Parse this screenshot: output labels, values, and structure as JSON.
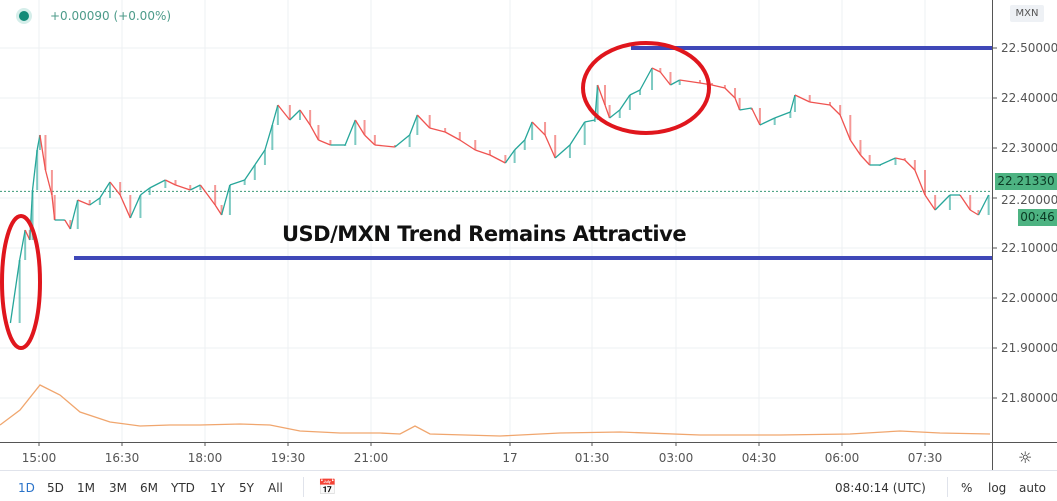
{
  "header": {
    "status_dot_color": "#138a78",
    "change_text": "+0.00090 (+0.00%)"
  },
  "price_axis": {
    "currency_label": "MXN",
    "ticks": [
      "22.50000",
      "22.40000",
      "22.30000",
      "22.20000",
      "22.10000",
      "22.00000",
      "21.90000",
      "21.80000"
    ],
    "current_price_label": "22.21330",
    "countdown_label": "00:46"
  },
  "time_axis": {
    "ticks": [
      "15:00",
      "16:30",
      "18:00",
      "19:30",
      "21:00",
      "17",
      "01:30",
      "03:00",
      "04:30",
      "06:00",
      "07:30"
    ],
    "settings_icon": "gear-icon"
  },
  "annotation": {
    "title": "USD/MXN Trend Remains Attractive",
    "resistance_level": 22.5,
    "support_level": 22.08,
    "line_color": "#3f48b8",
    "circle_color": "#e0161d"
  },
  "chart_data": {
    "type": "line",
    "title": "USD/MXN Trend Remains Attractive",
    "ylim": [
      21.72,
      22.59
    ],
    "grid": true,
    "current_price": 22.2133,
    "up_color": "#26a69a",
    "down_color": "#ef5350",
    "series": [
      {
        "points": [
          [
            "14:29",
            21.95
          ],
          [
            "14:39",
            22.076
          ],
          [
            "14:45",
            22.136
          ],
          [
            "14:50",
            22.116
          ],
          [
            "14:53",
            22.216
          ],
          [
            "14:58",
            22.296
          ],
          [
            "15:01",
            22.326
          ],
          [
            "15:07",
            22.256
          ],
          [
            "15:14",
            22.206
          ],
          [
            "15:17",
            22.156
          ],
          [
            "15:28",
            22.156
          ],
          [
            "15:34",
            22.138
          ],
          [
            "15:42",
            22.196
          ],
          [
            "15:55",
            22.186
          ],
          [
            "16:06",
            22.2
          ],
          [
            "16:17",
            22.232
          ],
          [
            "16:28",
            22.206
          ],
          [
            "16:39",
            22.16
          ],
          [
            "16:50",
            22.206
          ],
          [
            "17:00",
            22.22
          ],
          [
            "17:17",
            22.236
          ],
          [
            "17:28",
            22.226
          ],
          [
            "17:44",
            22.216
          ],
          [
            "17:55",
            22.226
          ],
          [
            "18:11",
            22.186
          ],
          [
            "18:18",
            22.166
          ],
          [
            "18:27",
            22.226
          ],
          [
            "18:43",
            22.236
          ],
          [
            "18:54",
            22.266
          ],
          [
            "19:05",
            22.296
          ],
          [
            "19:13",
            22.346
          ],
          [
            "19:19",
            22.386
          ],
          [
            "19:32",
            22.356
          ],
          [
            "19:43",
            22.376
          ],
          [
            "19:54",
            22.346
          ],
          [
            "20:03",
            22.316
          ],
          [
            "20:16",
            22.306
          ],
          [
            "20:32",
            22.306
          ],
          [
            "20:43",
            22.356
          ],
          [
            "20:53",
            22.326
          ],
          [
            "21:05",
            22.306
          ],
          [
            "21:31",
            22.302
          ],
          [
            "21:50",
            22.326
          ],
          [
            "22:00",
            22.366
          ],
          [
            "22:16",
            22.34
          ],
          [
            "22:36",
            22.332
          ],
          [
            "22:55",
            22.316
          ],
          [
            "23:15",
            22.296
          ],
          [
            "23:34",
            22.286
          ],
          [
            "23:54",
            22.27
          ],
          [
            "00:05",
            22.296
          ],
          [
            "00:16",
            22.316
          ],
          [
            "00:24",
            22.352
          ],
          [
            "00:38",
            22.326
          ],
          [
            "00:49",
            22.28
          ],
          [
            "01:05",
            22.306
          ],
          [
            "01:21",
            22.352
          ],
          [
            "01:32",
            22.356
          ],
          [
            "01:35",
            22.426
          ],
          [
            "01:43",
            22.386
          ],
          [
            "01:48",
            22.36
          ],
          [
            "01:59",
            22.376
          ],
          [
            "02:10",
            22.406
          ],
          [
            "02:21",
            22.416
          ],
          [
            "02:34",
            22.46
          ],
          [
            "02:43",
            22.452
          ],
          [
            "02:54",
            22.426
          ],
          [
            "03:04",
            22.436
          ],
          [
            "03:26",
            22.43
          ],
          [
            "03:39",
            22.426
          ],
          [
            "03:53",
            22.42
          ],
          [
            "04:04",
            22.4
          ],
          [
            "04:09",
            22.376
          ],
          [
            "04:22",
            22.38
          ],
          [
            "04:31",
            22.346
          ],
          [
            "04:47",
            22.36
          ],
          [
            "05:04",
            22.372
          ],
          [
            "05:09",
            22.406
          ],
          [
            "05:25",
            22.392
          ],
          [
            "05:47",
            22.386
          ],
          [
            "05:58",
            22.366
          ],
          [
            "06:09",
            22.316
          ],
          [
            "06:20",
            22.286
          ],
          [
            "06:30",
            22.266
          ],
          [
            "06:41",
            22.266
          ],
          [
            "06:58",
            22.28
          ],
          [
            "07:08",
            22.276
          ],
          [
            "07:19",
            22.256
          ],
          [
            "07:30",
            22.206
          ],
          [
            "07:41",
            22.176
          ],
          [
            "07:57",
            22.206
          ],
          [
            "08:08",
            22.206
          ],
          [
            "08:19",
            22.176
          ],
          [
            "08:28",
            22.166
          ],
          [
            "08:39",
            22.206
          ]
        ]
      }
    ]
  },
  "toolbar": {
    "ranges": [
      "1D",
      "5D",
      "1M",
      "3M",
      "6M",
      "YTD",
      "1Y",
      "5Y",
      "All"
    ],
    "active_range": "1D",
    "clock": "08:40:14 (UTC)",
    "percent_label": "%",
    "log_label": "log",
    "auto_label": "auto"
  }
}
